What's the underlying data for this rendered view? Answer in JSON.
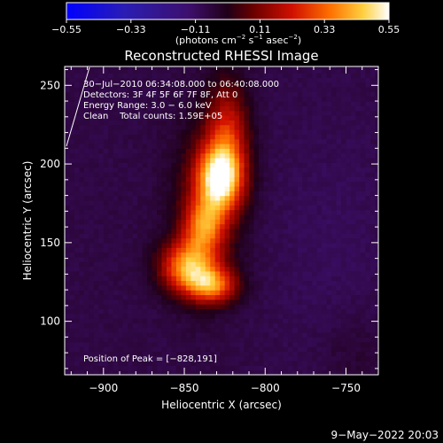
{
  "chart_data": {
    "type": "heatmap",
    "title": "Reconstructed RHESSI Image",
    "xlabel": "Heliocentric X (arcsec)",
    "ylabel": "Heliocentric Y (arcsec)",
    "xlim": [
      -924,
      -730
    ],
    "ylim": [
      66,
      262
    ],
    "x_ticks": [
      -900,
      -850,
      -800,
      -750
    ],
    "x_tick_labels": [
      "−900",
      "−850",
      "−800",
      "−750"
    ],
    "y_ticks": [
      100,
      150,
      200,
      250
    ],
    "y_tick_labels": [
      "100",
      "150",
      "200",
      "250"
    ],
    "colorbar": {
      "colormap": "hot-with-blue-negatives",
      "range": [
        -0.55,
        0.55
      ],
      "ticks": [
        -0.55,
        -0.33,
        -0.11,
        0.11,
        0.33,
        0.55
      ],
      "tick_labels": [
        "−0.55",
        "−0.33",
        "−0.11",
        "0.11",
        "0.33",
        "0.55"
      ],
      "unit_parts": [
        "(photons cm",
        "−2",
        " s",
        "−1",
        " asec",
        "−2",
        ")"
      ]
    },
    "annotations": [
      "30−Jul−2010 06:34:08.000 to 06:40:08.000",
      "Detectors: 3F 4F 5F 6F 7F 8F, Att 0",
      "Energy Range: 3.0 − 6.0 keV",
      "Clean    Total counts: 1.59E+05"
    ],
    "peak_label": "Position of Peak = [−828,191]",
    "peak": [
      -828,
      191
    ],
    "peak_value": 0.55,
    "sources": [
      {
        "x": -828,
        "y": 191,
        "sx": 10,
        "sy": 15,
        "amp": 0.55
      },
      {
        "x": -823,
        "y": 222,
        "sx": 9,
        "sy": 22,
        "amp": 0.25
      },
      {
        "x": -838,
        "y": 160,
        "sx": 9,
        "sy": 12,
        "amp": 0.33
      },
      {
        "x": -848,
        "y": 135,
        "sx": 12,
        "sy": 11,
        "amp": 0.42
      },
      {
        "x": -833,
        "y": 123,
        "sx": 11,
        "sy": 8,
        "amp": 0.37
      },
      {
        "x": -836,
        "y": 175,
        "sx": 16,
        "sy": 40,
        "amp": 0.13
      }
    ],
    "background": -0.07
  },
  "timestamp": "9−May−2022 20:03"
}
